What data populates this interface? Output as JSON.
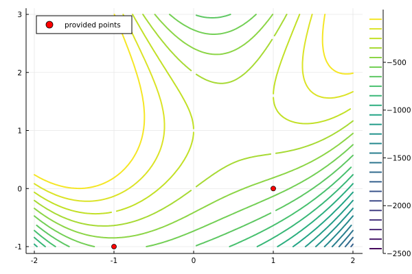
{
  "chart_data": [
    {
      "type": "contour",
      "xlim": [
        -2,
        2
      ],
      "ylim": [
        -1,
        3
      ],
      "xticks": [
        -2,
        -1,
        0,
        1,
        2
      ],
      "yticks": [
        -1,
        0,
        1,
        2,
        3
      ],
      "grid": true,
      "colormap": "viridis",
      "contour_levels": [
        -2450,
        -2350,
        -2250,
        -2150,
        -2050,
        -1950,
        -1850,
        -1750,
        -1650,
        -1550,
        -1450,
        -1350,
        -1250,
        -1150,
        -1050,
        -950,
        -850,
        -750,
        -650,
        -550,
        -450,
        -350,
        -250,
        -150,
        -50
      ],
      "colorbar": {
        "ticks": [
          -500,
          -1000,
          -1500,
          -2000,
          -2500
        ],
        "ticklabels": [
          "−500",
          "−1000",
          "−1500",
          "−2000",
          "−2500"
        ],
        "range": [
          -2500,
          -20
        ]
      },
      "series": [
        {
          "name": "provided points",
          "type": "scatter",
          "color": "#ff0000",
          "points": [
            {
              "x": 1,
              "y": 0
            },
            {
              "x": -1,
              "y": -1
            }
          ]
        }
      ],
      "legend_position": "top-left"
    }
  ]
}
